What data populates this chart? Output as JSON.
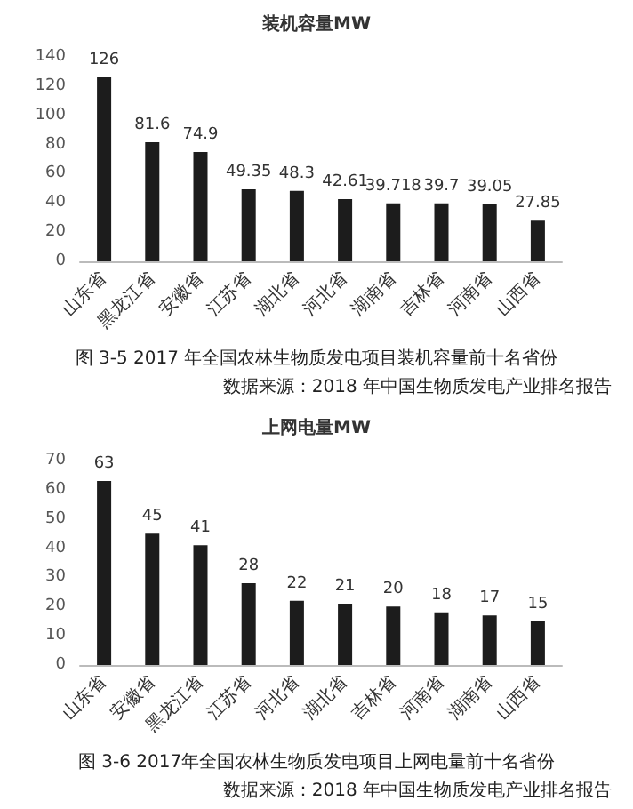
{
  "chart_data": [
    {
      "type": "bar",
      "title": "装机容量MW",
      "categories": [
        "山东省",
        "黑龙江省",
        "安徽省",
        "江苏省",
        "湖北省",
        "河北省",
        "湖南省",
        "吉林省",
        "河南省",
        "山西省"
      ],
      "values": [
        126,
        81.6,
        74.9,
        49.35,
        48.3,
        42.61,
        39.718,
        39.7,
        39.05,
        27.85
      ],
      "color": "#1c1c1c",
      "ylim": [
        0,
        140
      ],
      "yticks": [
        0,
        20,
        40,
        60,
        80,
        100,
        120,
        140
      ],
      "data_labels": true,
      "annotations": [
        "图 3-5 2017 年全国农林生物质发电项目装机容量前十名省份",
        "数据来源：2018 年中国生物质发电产业排名报告"
      ]
    },
    {
      "type": "bar",
      "title": "上网电量MW",
      "categories": [
        "山东省",
        "安徽省",
        "黑龙江省",
        "江苏省",
        "河北省",
        "湖北省",
        "吉林省",
        "河南省",
        "湖南省",
        "山西省"
      ],
      "values": [
        63,
        45,
        41,
        28,
        22,
        21,
        20,
        18,
        17,
        15
      ],
      "color": "#1c1c1c",
      "ylim": [
        0,
        70
      ],
      "yticks": [
        0,
        10,
        20,
        30,
        40,
        50,
        60,
        70
      ],
      "data_labels": true,
      "annotations": [
        "图 3-6 2017年全国农林生物质发电项目上网电量前十名省份",
        "数据来源：2018 年中国生物质发电产业排名报告"
      ]
    }
  ]
}
